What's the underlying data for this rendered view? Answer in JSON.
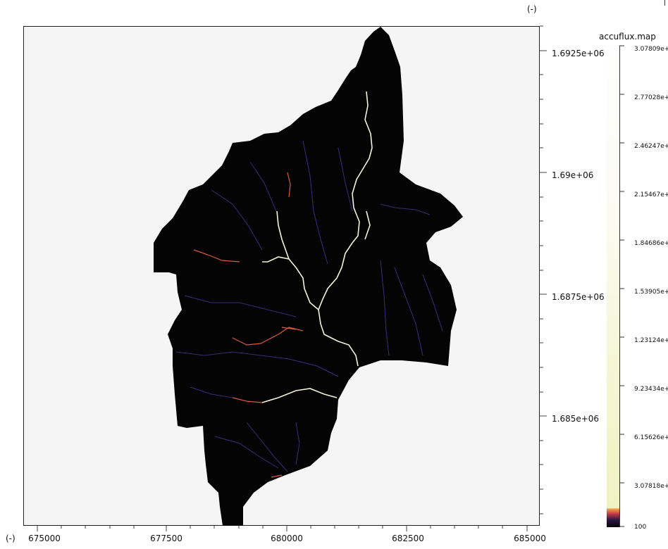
{
  "units": {
    "top_right": "(-)",
    "bottom_left": "(-)"
  },
  "x_ticks": [
    "675000",
    "677500",
    "680000",
    "682500",
    "685000"
  ],
  "y_ticks": [
    "1.6925e+06",
    "1.69e+06",
    "1.6875e+06",
    "1.685e+06"
  ],
  "legend": {
    "title": "accuflux.map",
    "labels": [
      "3.07809e+",
      "2.77028e+",
      "2.46247e+",
      "2.15467e+",
      "1.84686e+",
      "1.53905e+",
      "1.23124e+",
      "9.23434e+",
      "6.15626e+",
      "3.07818e+",
      "100"
    ]
  },
  "colors": {
    "background": "#f4f5f4",
    "catchment": "#050404",
    "main_stream": "#f4f4dc",
    "minor_stream_red": "#d85840",
    "minor_stream_blue": "#3a2a7a"
  }
}
